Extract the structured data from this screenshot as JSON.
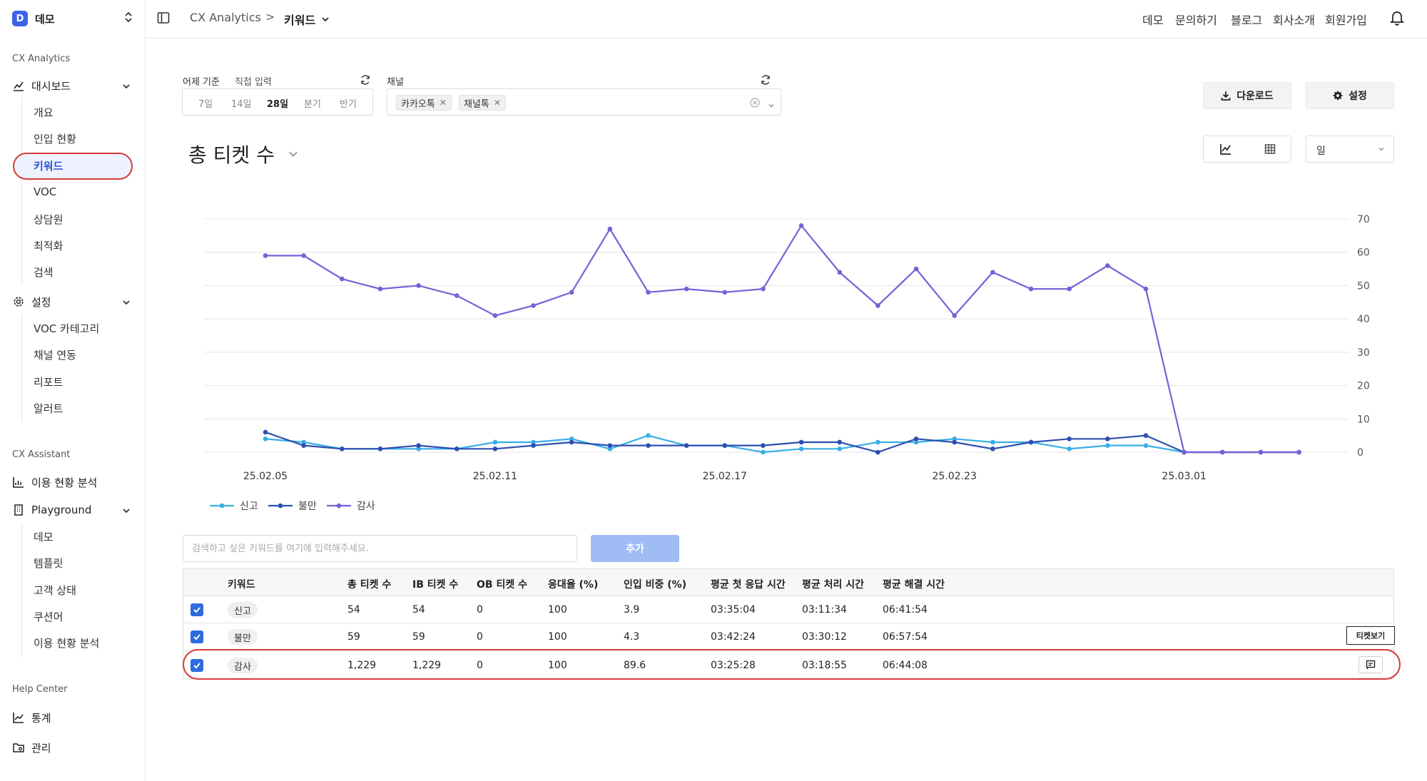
{
  "workspace": {
    "logo": "D",
    "name": "데모"
  },
  "sidebar": {
    "section_cx": "CX Analytics",
    "dashboard": "대시보드",
    "dashboard_items": [
      "개요",
      "인입 현황",
      "키워드",
      "VOC",
      "상담원",
      "최적화",
      "검색"
    ],
    "settings": "설정",
    "settings_items": [
      "VOC 카테고리",
      "채널 연동",
      "리포트",
      "알러트"
    ],
    "section_assistant": "CX Assistant",
    "usage": "이용 현황 분석",
    "playground": "Playground",
    "playground_items": [
      "데모",
      "템플릿",
      "고객 상태",
      "쿠션어",
      "이용 현황 분석"
    ],
    "section_help": "Help Center",
    "stats": "통계",
    "manage": "관리",
    "active_item": "키워드"
  },
  "topbar": {
    "breadcrumb_root": "CX Analytics",
    "breadcrumb_sep": ">",
    "breadcrumb_current": "키워드",
    "nav": [
      "데모",
      "문의하기",
      "블로그",
      "회사소개",
      "회원가입"
    ]
  },
  "filters": {
    "date_label": "어제 기준",
    "direct_input": "직접 입력",
    "periods": [
      "7일",
      "14일",
      "28일",
      "분기",
      "반기"
    ],
    "selected_period": "28일",
    "channel_label": "채널",
    "channels": [
      "카카오톡",
      "채널톡"
    ]
  },
  "actions": {
    "download": "다운로드",
    "settings": "설정"
  },
  "metric": {
    "title": "총 티켓 수",
    "granularity": "일"
  },
  "colors": {
    "신고": "#3aaee6",
    "불만": "#2d4fb0",
    "감사": "#7a5fd8",
    "accent": "#2f55d4",
    "highlight": "#d63a3a"
  },
  "chart_data": {
    "type": "line",
    "x": [
      "25.02.05",
      "25.02.06",
      "25.02.07",
      "25.02.08",
      "25.02.09",
      "25.02.10",
      "25.02.11",
      "25.02.12",
      "25.02.13",
      "25.02.14",
      "25.02.15",
      "25.02.16",
      "25.02.17",
      "25.02.18",
      "25.02.19",
      "25.02.20",
      "25.02.21",
      "25.02.22",
      "25.02.23",
      "25.02.24",
      "25.02.25",
      "25.02.26",
      "25.02.27",
      "25.02.28",
      "25.03.01",
      "25.03.02",
      "25.03.03",
      "25.03.04"
    ],
    "x_tick_labels": [
      "25.02.05",
      "25.02.11",
      "25.02.17",
      "25.02.23",
      "25.03.01"
    ],
    "y_ticks": [
      0,
      10,
      20,
      30,
      40,
      50,
      60,
      70
    ],
    "ylim": [
      0,
      70
    ],
    "y_axis_side": "right",
    "grid": true,
    "legend_position": "bottom-left",
    "series": [
      {
        "name": "신고",
        "values": [
          4,
          3,
          1,
          1,
          1,
          1,
          3,
          3,
          4,
          1,
          5,
          2,
          2,
          0,
          1,
          1,
          3,
          3,
          4,
          3,
          3,
          1,
          2,
          2,
          0,
          0,
          0,
          0
        ]
      },
      {
        "name": "불만",
        "values": [
          6,
          2,
          1,
          1,
          2,
          1,
          1,
          2,
          3,
          2,
          2,
          2,
          2,
          2,
          3,
          3,
          0,
          4,
          3,
          1,
          3,
          4,
          4,
          5,
          0,
          0,
          0,
          0
        ]
      },
      {
        "name": "감사",
        "values": [
          59,
          59,
          52,
          49,
          50,
          47,
          41,
          44,
          48,
          67,
          48,
          49,
          48,
          49,
          68,
          54,
          44,
          55,
          41,
          54,
          49,
          49,
          56,
          49,
          0,
          0,
          0,
          0
        ]
      }
    ]
  },
  "keyword_search": {
    "placeholder": "검색하고 싶은 키워드를 여기에 입력해주세요.",
    "add_button": "추가"
  },
  "table": {
    "headers": [
      "키워드",
      "총 티켓 수",
      "IB 티켓 수",
      "OB 티켓 수",
      "응대율 (%)",
      "인입 비중 (%)",
      "평균 첫 응답 시간",
      "평균 처리 시간",
      "평균 해결 시간"
    ],
    "rows": [
      [
        "신고",
        "54",
        "54",
        "0",
        "100",
        "3.9",
        "03:35:04",
        "03:11:34",
        "06:41:54"
      ],
      [
        "불만",
        "59",
        "59",
        "0",
        "100",
        "4.3",
        "03:42:24",
        "03:30:12",
        "06:57:54"
      ],
      [
        "감사",
        "1,229",
        "1,229",
        "0",
        "100",
        "89.6",
        "03:25:28",
        "03:18:55",
        "06:44:08"
      ]
    ],
    "tooltip": "티켓보기"
  }
}
